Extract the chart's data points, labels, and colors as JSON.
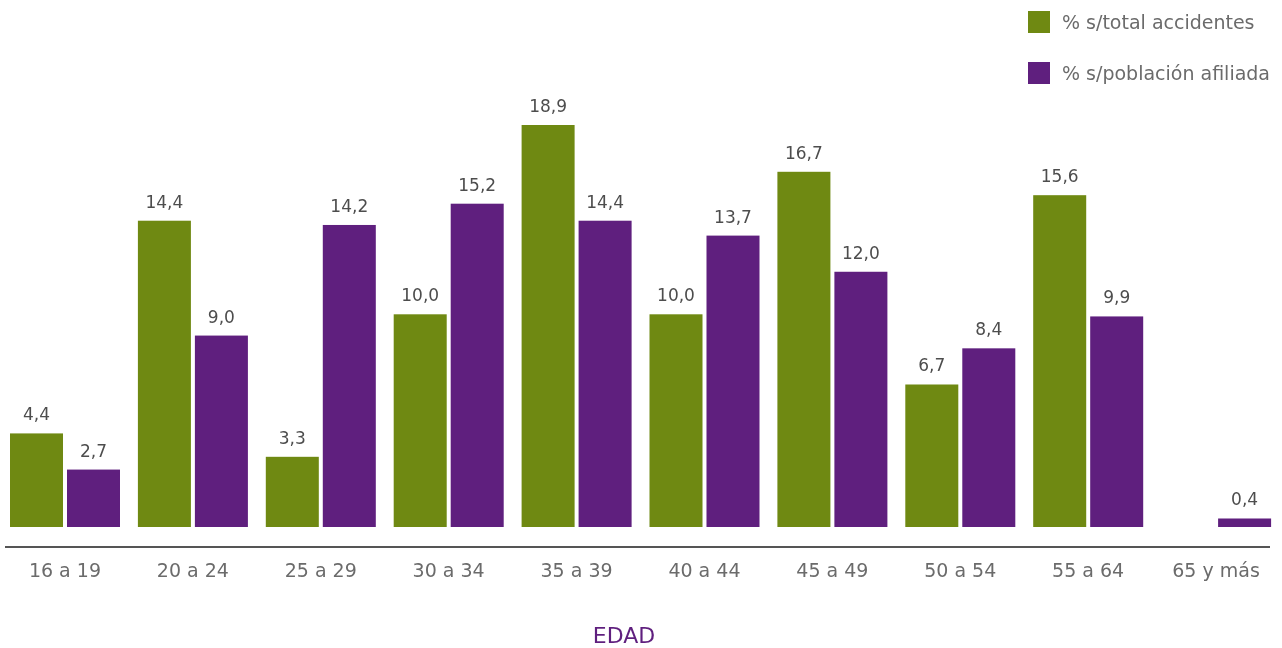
{
  "chart_data": {
    "type": "bar",
    "xlabel": "EDAD",
    "legend": "top right",
    "categories": [
      "16 a 19",
      "20 a 24",
      "25 a 29",
      "30 a 34",
      "35 a 39",
      "40 a 44",
      "45 a 49",
      "50 a 54",
      "55 a 64",
      "65 y más"
    ],
    "series": [
      {
        "name": "% s/total accidentes",
        "color": "#6f8912",
        "values": [
          4.4,
          14.4,
          3.3,
          10.0,
          18.9,
          10.0,
          16.7,
          6.7,
          15.6,
          null
        ],
        "value_labels": [
          "4,4",
          "14,4",
          "3,3",
          "10,0",
          "18,9",
          "10,0",
          "16,7",
          "6,7",
          "15,6",
          null
        ]
      },
      {
        "name": "% s/población afiliada",
        "color": "#5f1f7e",
        "values": [
          2.7,
          9.0,
          14.2,
          15.2,
          14.4,
          13.7,
          12.0,
          8.4,
          9.9,
          0.4
        ],
        "value_labels": [
          "2,7",
          "9,0",
          "14,2",
          "15,2",
          "14,4",
          "13,7",
          "12,0",
          "8,4",
          "9,9",
          "0,4"
        ]
      }
    ]
  }
}
